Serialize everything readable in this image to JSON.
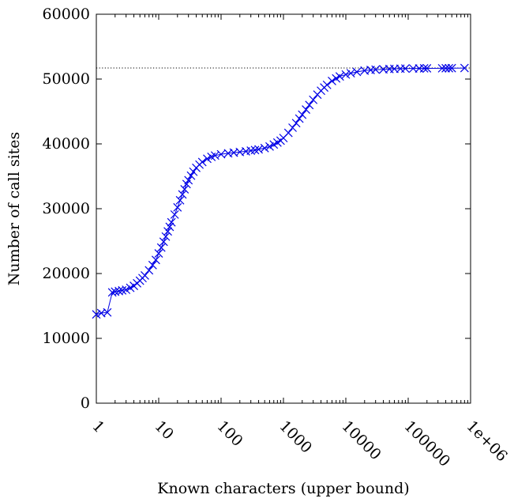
{
  "chart_data": {
    "type": "line",
    "xlabel": "Known characters (upper bound)",
    "ylabel": "Number of call sites",
    "xscale": "log",
    "xlim": [
      1,
      1000000
    ],
    "ylim": [
      0,
      60000
    ],
    "grid": false,
    "legend": "none",
    "x_tick_labels": [
      "1",
      "10",
      "100",
      "1000",
      "10000",
      "100000",
      "1e+06"
    ],
    "x_tick_values": [
      1,
      10,
      100,
      1000,
      10000,
      100000,
      1000000
    ],
    "y_tick_labels": [
      "0",
      "10000",
      "20000",
      "30000",
      "40000",
      "50000",
      "60000"
    ],
    "y_tick_values": [
      0,
      10000,
      20000,
      30000,
      40000,
      50000,
      60000
    ],
    "reference_line": {
      "y": 51700,
      "style": "dotted"
    },
    "series": [
      {
        "marker": "x",
        "color": "#0000e6",
        "points": [
          [
            1,
            13700
          ],
          [
            1.2,
            13900
          ],
          [
            1.5,
            14000
          ],
          [
            1.8,
            17100
          ],
          [
            2,
            17200
          ],
          [
            2.3,
            17300
          ],
          [
            2.6,
            17400
          ],
          [
            3,
            17500
          ],
          [
            3.5,
            17800
          ],
          [
            4,
            18100
          ],
          [
            4.5,
            18500
          ],
          [
            5,
            18900
          ],
          [
            5.5,
            19300
          ],
          [
            6,
            19700
          ],
          [
            7,
            20500
          ],
          [
            8,
            21300
          ],
          [
            9,
            22100
          ],
          [
            10,
            23100
          ],
          [
            11,
            24000
          ],
          [
            12,
            24900
          ],
          [
            13,
            25700
          ],
          [
            14,
            26500
          ],
          [
            15,
            27200
          ],
          [
            16,
            27900
          ],
          [
            18,
            29100
          ],
          [
            20,
            30200
          ],
          [
            22,
            31300
          ],
          [
            24,
            32200
          ],
          [
            26,
            33000
          ],
          [
            28,
            33800
          ],
          [
            30,
            34400
          ],
          [
            33,
            35100
          ],
          [
            36,
            35700
          ],
          [
            40,
            36300
          ],
          [
            45,
            36800
          ],
          [
            50,
            37200
          ],
          [
            60,
            37700
          ],
          [
            70,
            38000
          ],
          [
            80,
            38200
          ],
          [
            100,
            38400
          ],
          [
            130,
            38550
          ],
          [
            160,
            38650
          ],
          [
            200,
            38750
          ],
          [
            250,
            38850
          ],
          [
            300,
            38950
          ],
          [
            350,
            39050
          ],
          [
            400,
            39150
          ],
          [
            500,
            39350
          ],
          [
            600,
            39600
          ],
          [
            700,
            39900
          ],
          [
            800,
            40200
          ],
          [
            900,
            40500
          ],
          [
            1000,
            40900
          ],
          [
            1200,
            41700
          ],
          [
            1400,
            42500
          ],
          [
            1600,
            43200
          ],
          [
            1800,
            43900
          ],
          [
            2000,
            44500
          ],
          [
            2300,
            45300
          ],
          [
            2600,
            46000
          ],
          [
            3000,
            46800
          ],
          [
            3500,
            47600
          ],
          [
            4000,
            48200
          ],
          [
            4500,
            48700
          ],
          [
            5000,
            49100
          ],
          [
            6000,
            49700
          ],
          [
            7000,
            50100
          ],
          [
            8000,
            50400
          ],
          [
            10000,
            50700
          ],
          [
            12000,
            50900
          ],
          [
            15000,
            51100
          ],
          [
            20000,
            51300
          ],
          [
            25000,
            51400
          ],
          [
            30000,
            51450
          ],
          [
            40000,
            51500
          ],
          [
            50000,
            51550
          ],
          [
            60000,
            51580
          ],
          [
            75000,
            51600
          ],
          [
            90000,
            51620
          ],
          [
            120000,
            51630
          ],
          [
            150000,
            51640
          ],
          [
            180000,
            51650
          ],
          [
            200000,
            51650
          ],
          [
            350000,
            51660
          ],
          [
            400000,
            51670
          ],
          [
            450000,
            51670
          ],
          [
            500000,
            51680
          ],
          [
            800000,
            51700
          ]
        ]
      }
    ]
  }
}
